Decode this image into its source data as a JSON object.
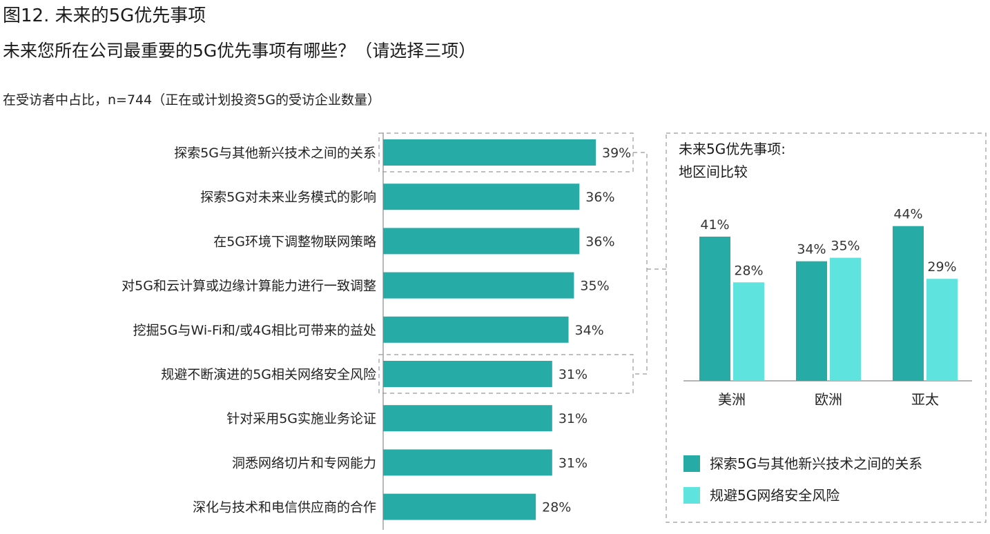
{
  "header": {
    "title": "图12. 未来的5G优先事项",
    "subtitle": "未来您所在公司最重要的5G优先事项有哪些？（请选择三项）",
    "note": "在受访者中占比，n=744（正在或计划投资5G的受访企业数量）"
  },
  "colors": {
    "primary": "#26ABA6",
    "secondary": "#5FE3DF",
    "axis": "#888888",
    "dashed": "#999999"
  },
  "chart_data": [
    {
      "type": "bar",
      "orientation": "horizontal",
      "categories": [
        "探索5G与其他新兴技术之间的关系",
        "探索5G对未来业务模式的影响",
        "在5G环境下调整物联网策略",
        "对5G和云计算或边缘计算能力进行一致调整",
        "挖掘5G与Wi-Fi和/或4G相比可带来的益处",
        "规避不断演进的5G相关网络安全风险",
        "针对采用5G实施业务论证",
        "洞悉网络切片和专网能力",
        "深化与技术和电信供应商的合作"
      ],
      "values": [
        39,
        36,
        36,
        35,
        34,
        31,
        31,
        31,
        28
      ],
      "value_labels": [
        "39%",
        "36%",
        "36%",
        "35%",
        "34%",
        "31%",
        "31%",
        "31%",
        "28%"
      ],
      "xlim": [
        0,
        45
      ],
      "highlighted_indices": [
        0,
        5
      ]
    },
    {
      "type": "bar",
      "title_lines": [
        "未来5G优先事项:",
        "地区间比较"
      ],
      "categories": [
        "美洲",
        "欧洲",
        "亚太"
      ],
      "series": [
        {
          "name": "探索5G与其他新兴技术之间的关系",
          "values": [
            41,
            34,
            44
          ],
          "labels": [
            "41%",
            "34%",
            "44%"
          ]
        },
        {
          "name": "规避5G网络安全风险",
          "values": [
            28,
            35,
            29
          ],
          "labels": [
            "28%",
            "35%",
            "29%"
          ]
        }
      ],
      "ylim": [
        0,
        50
      ],
      "legend": "bottom"
    }
  ]
}
